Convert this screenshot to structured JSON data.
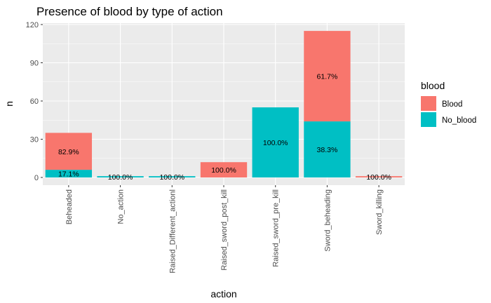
{
  "chart_data": {
    "type": "bar",
    "stacked": true,
    "title": "Presence of blood by type of action",
    "xlabel": "action",
    "ylabel": "n",
    "ylim": [
      0,
      120
    ],
    "yticks": [
      0,
      30,
      60,
      90,
      120
    ],
    "categories": [
      "Beheaded",
      "No_action",
      "Raised_Different_actionl",
      "Raised_sword_post_kill",
      "Raised_sword_pre_kill",
      "Sword_beheading",
      "Sword_killing"
    ],
    "series": [
      {
        "name": "No_blood",
        "color": "#00BFC4",
        "values": [
          6,
          1,
          1,
          0,
          55,
          44,
          0
        ],
        "labels": [
          "17.1%",
          "100.0%",
          "100.0%",
          "",
          "100.0%",
          "38.3%",
          ""
        ]
      },
      {
        "name": "Blood",
        "color": "#F8766D",
        "values": [
          29,
          0,
          0,
          12,
          0,
          71,
          1
        ],
        "labels": [
          "82.9%",
          "",
          "",
          "100.0%",
          "",
          "61.7%",
          "100.0%"
        ]
      }
    ],
    "legend": {
      "title": "blood",
      "position": "right",
      "entries": [
        {
          "name": "Blood",
          "color": "#F8766D"
        },
        {
          "name": "No_blood",
          "color": "#00BFC4"
        }
      ]
    },
    "grid": true,
    "panel_background": "#EBEBEB"
  }
}
